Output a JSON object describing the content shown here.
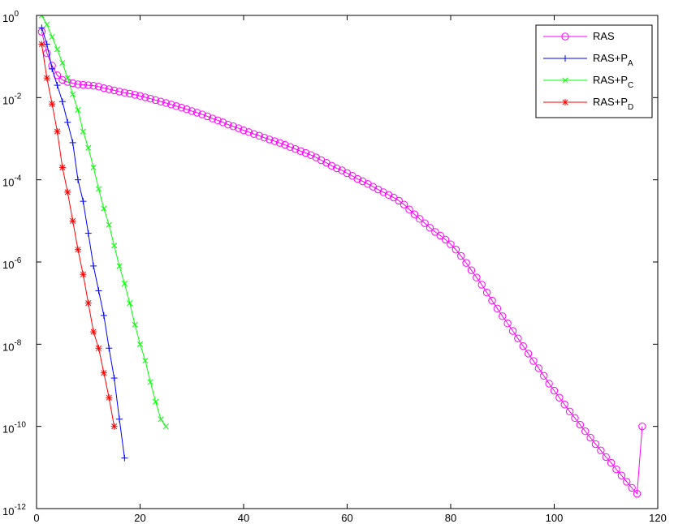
{
  "chart_data": {
    "type": "line",
    "title": "",
    "xlabel": "",
    "ylabel": "",
    "xlim": [
      0,
      120
    ],
    "ylim_exponent": [
      -12,
      0
    ],
    "yscale": "log",
    "grid": false,
    "legend_position": "top-right",
    "x_ticks": [
      0,
      20,
      40,
      60,
      80,
      100,
      120
    ],
    "y_ticks": [
      {
        "base": "10",
        "exp": "0",
        "value": 1.0
      },
      {
        "base": "10",
        "exp": "-2",
        "value": 0.01
      },
      {
        "base": "10",
        "exp": "-4",
        "value": 0.0001
      },
      {
        "base": "10",
        "exp": "-6",
        "value": 1e-06
      },
      {
        "base": "10",
        "exp": "-8",
        "value": 1e-08
      },
      {
        "base": "10",
        "exp": "-10",
        "value": 1e-10
      },
      {
        "base": "10",
        "exp": "-12",
        "value": 1e-12
      }
    ],
    "series": [
      {
        "name": "RAS",
        "name_main": "RAS",
        "name_sub": "",
        "color": "#ff00ff",
        "marker": "circle",
        "x": [
          1,
          2,
          3,
          4,
          5,
          6,
          7,
          8,
          9,
          10,
          11,
          12,
          13,
          14,
          15,
          16,
          17,
          18,
          19,
          20,
          21,
          22,
          23,
          24,
          25,
          26,
          27,
          28,
          29,
          30,
          31,
          32,
          33,
          34,
          35,
          36,
          37,
          38,
          39,
          40,
          41,
          42,
          43,
          44,
          45,
          46,
          47,
          48,
          49,
          50,
          51,
          52,
          53,
          54,
          55,
          56,
          57,
          58,
          59,
          60,
          61,
          62,
          63,
          64,
          65,
          66,
          67,
          68,
          69,
          70,
          71,
          72,
          73,
          74,
          75,
          76,
          77,
          78,
          79,
          80,
          81,
          82,
          83,
          84,
          85,
          86,
          87,
          88,
          89,
          90,
          91,
          92,
          93,
          94,
          95,
          96,
          97,
          98,
          99,
          100,
          101,
          102,
          103,
          104,
          105,
          106,
          107,
          108,
          109,
          110,
          111,
          112,
          113,
          114,
          115,
          116,
          117
        ],
        "y": [
          0.4,
          0.12,
          0.06,
          0.035,
          0.027,
          0.024,
          0.0225,
          0.021,
          0.0205,
          0.02,
          0.0195,
          0.0185,
          0.017,
          0.016,
          0.015,
          0.014,
          0.0132,
          0.0125,
          0.0117,
          0.011,
          0.0102,
          0.0094,
          0.0087,
          0.008,
          0.0074,
          0.0068,
          0.0062,
          0.0057,
          0.0052,
          0.0047,
          0.0043,
          0.0039,
          0.0035,
          0.0031,
          0.0028,
          0.0025,
          0.0022,
          0.002,
          0.0018,
          0.0016,
          0.00145,
          0.0013,
          0.00118,
          0.00106,
          0.00096,
          0.00087,
          0.00079,
          0.00071,
          0.00063,
          0.00056,
          0.0005,
          0.00045,
          0.0004,
          0.00035,
          0.0003,
          0.00026,
          0.00022,
          0.00019,
          0.00017,
          0.000145,
          0.000125,
          0.000105,
          9.2e-05,
          7.9e-05,
          6.8e-05,
          5.8e-05,
          5e-05,
          4.3e-05,
          3.7e-05,
          3.1e-05,
          2.5e-05,
          1.9e-05,
          1.45e-05,
          1.12e-05,
          8.8e-06,
          6.8e-06,
          5.4e-06,
          4.4e-06,
          3.5e-06,
          2.7e-06,
          2e-06,
          1.4e-06,
          9.5e-07,
          6.3e-07,
          4.2e-07,
          2.8e-07,
          1.8e-07,
          1.15e-07,
          7.4e-08,
          4.8e-08,
          3.2e-08,
          2.1e-08,
          1.38e-08,
          9e-09,
          5.9e-09,
          3.9e-09,
          2.6e-09,
          1.7e-09,
          1.1e-09,
          7.4e-10,
          5e-10,
          3.4e-10,
          2.3e-10,
          1.6e-10,
          1.1e-10,
          7.6e-11,
          5.3e-11,
          3.7e-11,
          2.6e-11,
          1.8e-11,
          1.3e-11,
          9e-12,
          6.4e-12,
          4.5e-12,
          3.2e-12,
          2.3e-12,
          1e-10
        ]
      },
      {
        "name": "RAS+PA",
        "name_main": "RAS+P",
        "name_sub": "A",
        "color": "#0000ff",
        "marker": "plus",
        "x": [
          1,
          2,
          3,
          4,
          5,
          6,
          7,
          8,
          9,
          10,
          11,
          12,
          13,
          14,
          15,
          16,
          17
        ],
        "y": [
          0.5,
          0.2,
          0.05,
          0.02,
          0.008,
          0.0025,
          0.0008,
          0.0001,
          3e-05,
          5e-06,
          8e-07,
          2e-07,
          5e-08,
          8e-09,
          1.5e-09,
          1.5e-10,
          1.7e-11
        ]
      },
      {
        "name": "RAS+PC",
        "name_main": "RAS+P",
        "name_sub": "C",
        "color": "#00ff00",
        "marker": "x",
        "x": [
          1,
          2,
          3,
          4,
          5,
          6,
          7,
          8,
          9,
          10,
          11,
          12,
          13,
          14,
          15,
          16,
          17,
          18,
          19,
          20,
          21,
          22,
          23,
          24,
          25
        ],
        "y": [
          1.0,
          0.6,
          0.3,
          0.15,
          0.07,
          0.03,
          0.012,
          0.005,
          0.0015,
          0.0006,
          0.0002,
          6e-05,
          2e-05,
          8e-06,
          2.5e-06,
          8e-07,
          3e-07,
          1e-07,
          3e-08,
          1e-08,
          4e-09,
          1.2e-09,
          4e-10,
          1.5e-10,
          1e-10
        ]
      },
      {
        "name": "RAS+PD",
        "name_main": "RAS+P",
        "name_sub": "D",
        "color": "#ff0000",
        "marker": "asterisk",
        "x": [
          1,
          2,
          3,
          4,
          5,
          6,
          7,
          8,
          9,
          10,
          11,
          12,
          13,
          14,
          15
        ],
        "y": [
          0.2,
          0.03,
          0.007,
          0.0015,
          0.0002,
          5e-05,
          1e-05,
          2e-06,
          5e-07,
          1e-07,
          2e-08,
          8e-09,
          2e-09,
          5e-10,
          1e-10
        ]
      }
    ]
  }
}
